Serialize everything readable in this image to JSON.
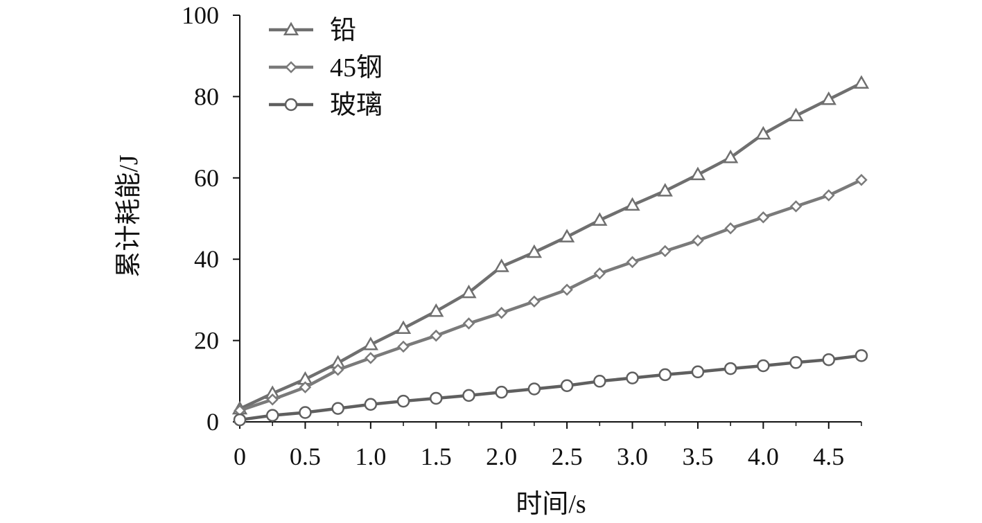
{
  "chart_data": {
    "type": "line",
    "title": "",
    "xlabel": "时间/s",
    "ylabel": "累计耗能/J",
    "xlim": [
      0,
      4.75
    ],
    "ylim": [
      0,
      100
    ],
    "x_ticks": [
      "0",
      "0.5",
      "1.0",
      "1.5",
      "2.0",
      "2.5",
      "3.0",
      "3.5",
      "4.0",
      "4.5"
    ],
    "y_ticks": [
      "0",
      "20",
      "40",
      "60",
      "80",
      "100"
    ],
    "grid": false,
    "legend_position": "top-left",
    "x": [
      0,
      0.25,
      0.5,
      0.75,
      1.0,
      1.25,
      1.5,
      1.75,
      2.0,
      2.25,
      2.5,
      2.75,
      3.0,
      3.25,
      3.5,
      3.75,
      4.0,
      4.25,
      4.5,
      4.75
    ],
    "series": [
      {
        "name": "铅",
        "marker": "triangle",
        "color": "#6f6f6f",
        "values": [
          3.2,
          7.0,
          10.5,
          14.5,
          19.0,
          23.0,
          27.2,
          31.8,
          38.2,
          41.7,
          45.5,
          49.6,
          53.3,
          56.8,
          60.8,
          65.0,
          70.8,
          75.3,
          79.3,
          83.3
        ]
      },
      {
        "name": "45钢",
        "marker": "diamond",
        "color": "#7a7a7a",
        "values": [
          2.8,
          5.5,
          8.5,
          12.8,
          15.7,
          18.5,
          21.2,
          24.2,
          26.8,
          29.6,
          32.5,
          36.5,
          39.3,
          42.0,
          44.6,
          47.6,
          50.3,
          53.0,
          55.7,
          59.5
        ]
      },
      {
        "name": "玻璃",
        "marker": "circle",
        "color": "#5f5f5f",
        "values": [
          0.5,
          1.6,
          2.3,
          3.3,
          4.3,
          5.1,
          5.8,
          6.5,
          7.3,
          8.1,
          8.9,
          10.0,
          10.8,
          11.6,
          12.3,
          13.1,
          13.8,
          14.6,
          15.3,
          16.3
        ]
      }
    ]
  }
}
